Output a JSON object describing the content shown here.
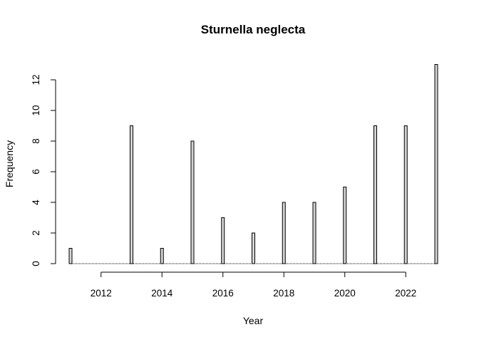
{
  "chart_data": {
    "type": "bar",
    "title": "Sturnella neglecta",
    "xlabel": "Year",
    "ylabel": "Frequency",
    "x": [
      2011,
      2013,
      2014,
      2015,
      2016,
      2017,
      2018,
      2019,
      2020,
      2021,
      2022,
      2023
    ],
    "values": [
      1,
      9,
      1,
      8,
      3,
      2,
      4,
      4,
      5,
      9,
      9,
      13
    ],
    "xlim": [
      2011,
      2023
    ],
    "ylim": [
      0,
      13
    ],
    "xticks": [
      "2012",
      "2014",
      "2016",
      "2018",
      "2020",
      "2022"
    ],
    "yticks": [
      "0",
      "2",
      "4",
      "6",
      "8",
      "10",
      "12"
    ],
    "bar_color": "#d3d3d3",
    "grid": false,
    "legend": "none"
  }
}
